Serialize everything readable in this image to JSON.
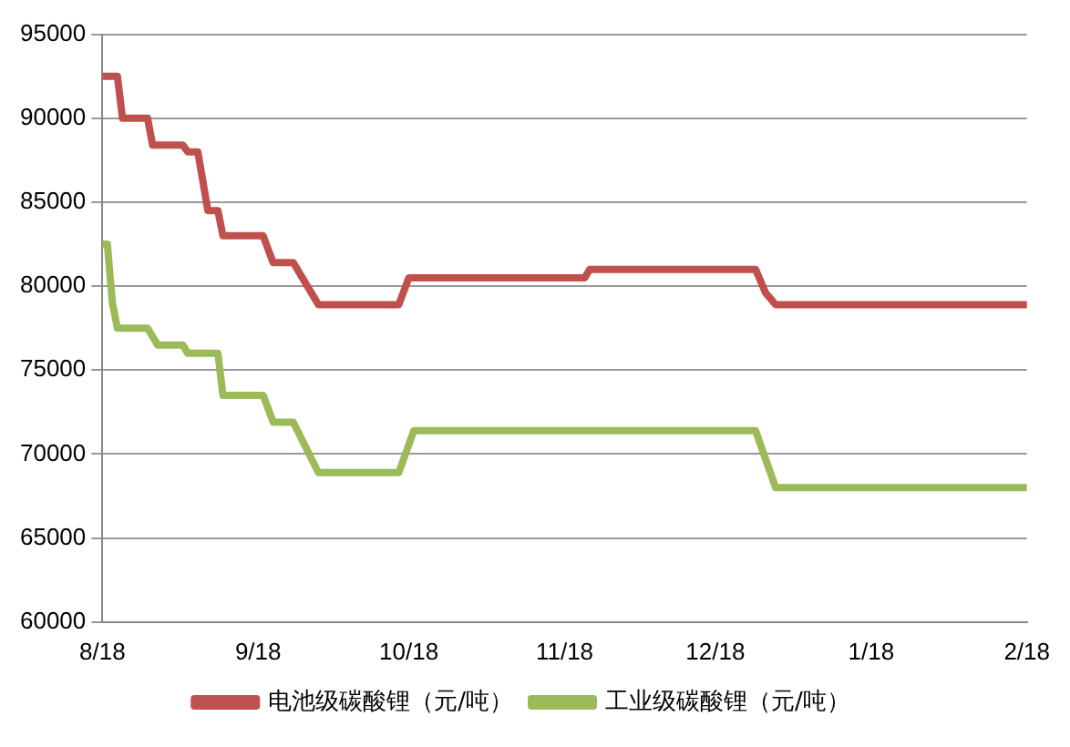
{
  "chart_data": {
    "type": "line",
    "xlim": [
      "2018-08-01",
      "2019-02-01"
    ],
    "xticks": [
      {
        "value": "2018-08-01",
        "label": "8/18"
      },
      {
        "value": "2018-09-01",
        "label": "9/18"
      },
      {
        "value": "2018-10-01",
        "label": "10/18"
      },
      {
        "value": "2018-11-01",
        "label": "11/18"
      },
      {
        "value": "2018-12-01",
        "label": "12/18"
      },
      {
        "value": "2019-01-01",
        "label": "1/18"
      },
      {
        "value": "2019-02-01",
        "label": "2/18"
      }
    ],
    "ylim": [
      60000,
      95000
    ],
    "yticks": [
      60000,
      65000,
      70000,
      75000,
      80000,
      85000,
      90000,
      95000
    ],
    "grid": "y",
    "legend": "bottom",
    "marker": "none",
    "line_style": "solid",
    "series": [
      {
        "name": "电池级碳酸锂（元/吨）",
        "color": "#c0504d",
        "x": [
          "2018-08-01",
          "2018-08-04",
          "2018-08-05",
          "2018-08-10",
          "2018-08-11",
          "2018-08-17",
          "2018-08-18",
          "2018-08-20",
          "2018-08-22",
          "2018-08-24",
          "2018-08-25",
          "2018-09-02",
          "2018-09-04",
          "2018-09-08",
          "2018-09-13",
          "2018-09-29",
          "2018-10-01",
          "2018-11-05",
          "2018-11-06",
          "2018-12-09",
          "2018-12-11",
          "2018-12-13",
          "2019-02-01"
        ],
        "values": [
          92500,
          92500,
          90000,
          90000,
          88400,
          88400,
          88000,
          88000,
          84500,
          84500,
          83000,
          83000,
          81400,
          81400,
          78900,
          78900,
          80500,
          80500,
          81000,
          81000,
          79600,
          78900,
          78900
        ]
      },
      {
        "name": "工业级碳酸锂（元/吨）",
        "color": "#9bbb59",
        "x": [
          "2018-08-01",
          "2018-08-02",
          "2018-08-03",
          "2018-08-04",
          "2018-08-10",
          "2018-08-12",
          "2018-08-17",
          "2018-08-18",
          "2018-08-24",
          "2018-08-25",
          "2018-09-02",
          "2018-09-04",
          "2018-09-08",
          "2018-09-13",
          "2018-09-29",
          "2018-10-02",
          "2018-12-09",
          "2018-12-13",
          "2019-02-01"
        ],
        "values": [
          82500,
          82500,
          79000,
          77500,
          77500,
          76500,
          76500,
          76000,
          76000,
          73500,
          73500,
          71900,
          71900,
          68900,
          68900,
          71400,
          71400,
          68000,
          68000
        ]
      }
    ]
  }
}
